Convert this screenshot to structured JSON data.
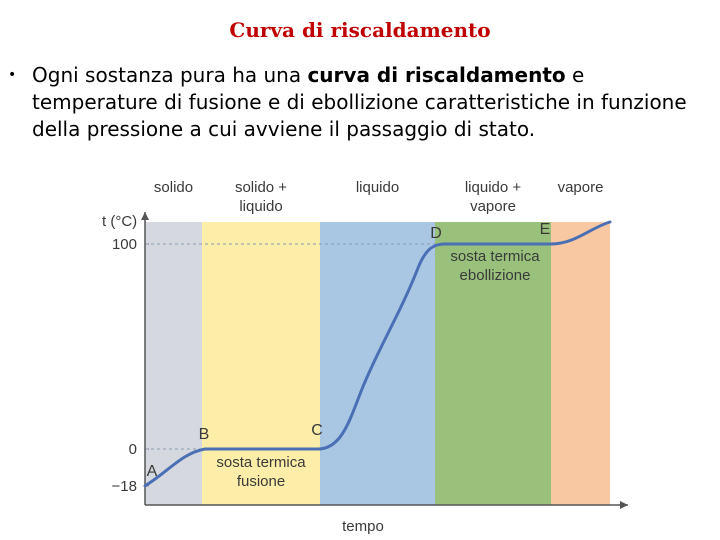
{
  "slide": {
    "title": "Curva di riscaldamento",
    "bullet_icon": "bullet-dot",
    "bullet_before": "Ogni sostanza pura ha una ",
    "bullet_bold": "curva di riscaldamento",
    "bullet_after": " e temperature di fusione e di ebollizione caratteristiche in funzione della pressione a cui avviene il passaggio di stato."
  },
  "chart_data": {
    "type": "line",
    "xlabel": "tempo",
    "ylabel": "t (°C)",
    "ylim": [
      -18,
      100
    ],
    "yticks": [
      -18,
      0,
      100
    ],
    "regions": [
      {
        "label": "solido",
        "color": "#d5d9df"
      },
      {
        "label": "solido +\nliquido",
        "color": "#fceea8"
      },
      {
        "label": "liquido",
        "color": "#a9c7e3"
      },
      {
        "label": "liquido +\nvapore",
        "color": "#99c17b"
      },
      {
        "label": "vapore",
        "color": "#f8c8a2"
      }
    ],
    "annotations": [
      "sosta termica\nfusione",
      "sosta termica\nebollizione"
    ],
    "points": [
      {
        "label": "A",
        "t": -18
      },
      {
        "label": "B",
        "t": 0
      },
      {
        "label": "C",
        "t": 0
      },
      {
        "label": "D",
        "t": 100
      },
      {
        "label": "E",
        "t": 100
      }
    ],
    "line_color": "#4a6fb5",
    "grid": false
  }
}
